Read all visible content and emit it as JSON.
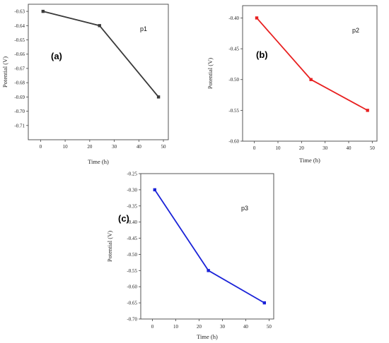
{
  "chart_data": [
    {
      "type": "line",
      "panel": "(a)",
      "title": "",
      "xlabel": "Time (h)",
      "ylabel": "Potential (V)",
      "xlim": [
        -5,
        52
      ],
      "ylim": [
        -0.72,
        -0.625
      ],
      "xticks": [
        0,
        10,
        20,
        30,
        40,
        50
      ],
      "xtick_labels": [
        "0",
        "10",
        "20",
        "30",
        "40",
        "50"
      ],
      "yticks": [
        -0.63,
        -0.64,
        -0.65,
        -0.66,
        -0.67,
        -0.68,
        -0.69,
        -0.7,
        -0.71
      ],
      "ytick_labels": [
        "-0.63",
        "-0.64",
        "-0.65",
        "-0.66",
        "-0.67",
        "-0.68",
        "-0.69",
        "-0.70",
        "-0.71"
      ],
      "series": [
        {
          "label": "p1",
          "color": "#3a3a3a",
          "x": [
            1,
            24,
            48
          ],
          "y": [
            -0.63,
            -0.64,
            -0.69
          ]
        }
      ],
      "grid": false
    },
    {
      "type": "line",
      "panel": "(b)",
      "title": "",
      "xlabel": "Time (h)",
      "ylabel": "Potential (V)",
      "xlim": [
        -5,
        52
      ],
      "ylim": [
        -0.6,
        -0.38
      ],
      "xticks": [
        0,
        10,
        20,
        30,
        40,
        50
      ],
      "xtick_labels": [
        "0",
        "10",
        "20",
        "30",
        "40",
        "50"
      ],
      "yticks": [
        -0.4,
        -0.45,
        -0.5,
        -0.55,
        -0.6
      ],
      "ytick_labels": [
        "-0.40",
        "-0.45",
        "-0.50",
        "-0.55",
        "-0.60"
      ],
      "series": [
        {
          "label": "p2",
          "color": "#e82020",
          "x": [
            1,
            24,
            48
          ],
          "y": [
            -0.4,
            -0.5,
            -0.55
          ]
        }
      ],
      "grid": false
    },
    {
      "type": "line",
      "panel": "(c)",
      "title": "",
      "xlabel": "Time (h)",
      "ylabel": "Potential (V)",
      "xlim": [
        -5,
        52
      ],
      "ylim": [
        -0.7,
        -0.25
      ],
      "xticks": [
        0,
        10,
        20,
        30,
        40,
        50
      ],
      "xtick_labels": [
        "0",
        "10",
        "20",
        "30",
        "40",
        "50"
      ],
      "yticks": [
        -0.25,
        -0.3,
        -0.35,
        -0.4,
        -0.45,
        -0.5,
        -0.55,
        -0.6,
        -0.65,
        -0.7
      ],
      "ytick_labels": [
        "-0.25",
        "-0.30",
        "-0.35",
        "-0.40",
        "-0.45",
        "-0.50",
        "-0.55",
        "-0.60",
        "-0.65",
        "-0.70"
      ],
      "series": [
        {
          "label": "p3",
          "color": "#1a22d8",
          "x": [
            1,
            24,
            48
          ],
          "y": [
            -0.3,
            -0.55,
            -0.65
          ]
        }
      ],
      "grid": false
    }
  ]
}
